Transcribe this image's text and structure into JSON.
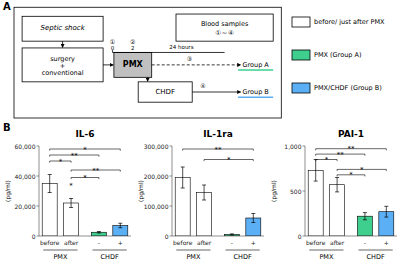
{
  "chart_data": [
    {
      "type": "diagram",
      "annotations": [
        "A",
        "Septic shock",
        "surgery",
        "+",
        "conventional",
        "PMX",
        "①",
        "②",
        "0",
        "2",
        "Blood samples",
        "①～④",
        "24 hours",
        "③",
        "Group A",
        "CHDF",
        "④",
        "Group B",
        "B"
      ],
      "series": [
        {
          "name": "before/ just after PMX",
          "color": "white"
        },
        {
          "name": "PMX (Group A)",
          "color": "#3ecf8e"
        },
        {
          "name": "PMX/CHDF (Group B)",
          "color": "#5baff5"
        }
      ],
      "legend": "upper right"
    },
    {
      "type": "bar",
      "title": "IL-6",
      "y_label": "(pg/ml)",
      "categories": [
        "before",
        "after",
        "-",
        "+"
      ],
      "groups": [
        "PMX",
        "PMX",
        "CHDF",
        "CHDF"
      ],
      "values": [
        35000,
        22000,
        2500,
        7000
      ],
      "errors": [
        6000,
        3000,
        500,
        1500
      ],
      "colors": [
        "white",
        "white",
        "#3ecf8e",
        "#5baff5"
      ],
      "ylim": [
        0,
        60000
      ],
      "yticks": [
        0,
        {
          "value": 20000,
          "label": "20,000"
        },
        {
          "value": 40000,
          "label": "40,000"
        },
        {
          "value": 60000,
          "label": "60,000"
        }
      ],
      "grid": false,
      "annotations": [
        {
          "text": "*",
          "from": "before",
          "to": "+",
          "y": 58000
        },
        {
          "text": "**",
          "from": "before",
          "to": "-",
          "y": 54000
        },
        {
          "text": "*",
          "from": "before",
          "to": "after",
          "y": 50000
        },
        {
          "text": "**",
          "from": "after",
          "to": "+",
          "y": 44000
        },
        {
          "text": "*",
          "from": "after",
          "to": "-",
          "y": 39000
        },
        {
          "text": "*",
          "from": "after",
          "to": "after",
          "y": 34000
        }
      ]
    },
    {
      "type": "bar",
      "title": "IL-1ra",
      "y_label": "(pg/ml)",
      "categories": [
        "before",
        "after",
        "-",
        "+"
      ],
      "groups": [
        "PMX",
        "PMX",
        "CHDF",
        "CHDF"
      ],
      "values": [
        195000,
        145000,
        5000,
        60000
      ],
      "errors": [
        35000,
        25000,
        2000,
        15000
      ],
      "colors": [
        "white",
        "white",
        "#3ecf8e",
        "#5baff5"
      ],
      "ylim": [
        0,
        300000
      ],
      "yticks": [
        0,
        {
          "value": 100000,
          "label": "100,000"
        },
        {
          "value": 200000,
          "label": "200,000"
        },
        {
          "value": 300000,
          "label": "300,000"
        }
      ],
      "grid": false,
      "annotations": [
        {
          "text": "**",
          "from": "before",
          "to": "+",
          "y": 290000
        },
        {
          "text": "*",
          "from": "after",
          "to": "+",
          "y": 255000
        }
      ]
    },
    {
      "type": "bar",
      "title": "PAI-1",
      "y_label": "(pg/ml)",
      "categories": [
        "before",
        "after",
        "-",
        "+"
      ],
      "groups": [
        "PMX",
        "PMX",
        "CHDF",
        "CHDF"
      ],
      "values": [
        730,
        570,
        220,
        270
      ],
      "errors": [
        120,
        80,
        40,
        60
      ],
      "colors": [
        "white",
        "white",
        "#3ecf8e",
        "#5baff5"
      ],
      "ylim": [
        0,
        1000
      ],
      "yticks": [
        0,
        500,
        {
          "value": 1000,
          "label": "1,000"
        }
      ],
      "grid": false,
      "annotations": [
        {
          "text": "**",
          "from": "before",
          "to": "+",
          "y": 970
        },
        {
          "text": "**",
          "from": "before",
          "to": "-",
          "y": 910
        },
        {
          "text": "*",
          "from": "before",
          "to": "after",
          "y": 850
        },
        {
          "text": "*",
          "from": "after",
          "to": "+",
          "y": 740
        },
        {
          "text": "*",
          "from": "after",
          "to": "-",
          "y": 680
        }
      ]
    }
  ]
}
